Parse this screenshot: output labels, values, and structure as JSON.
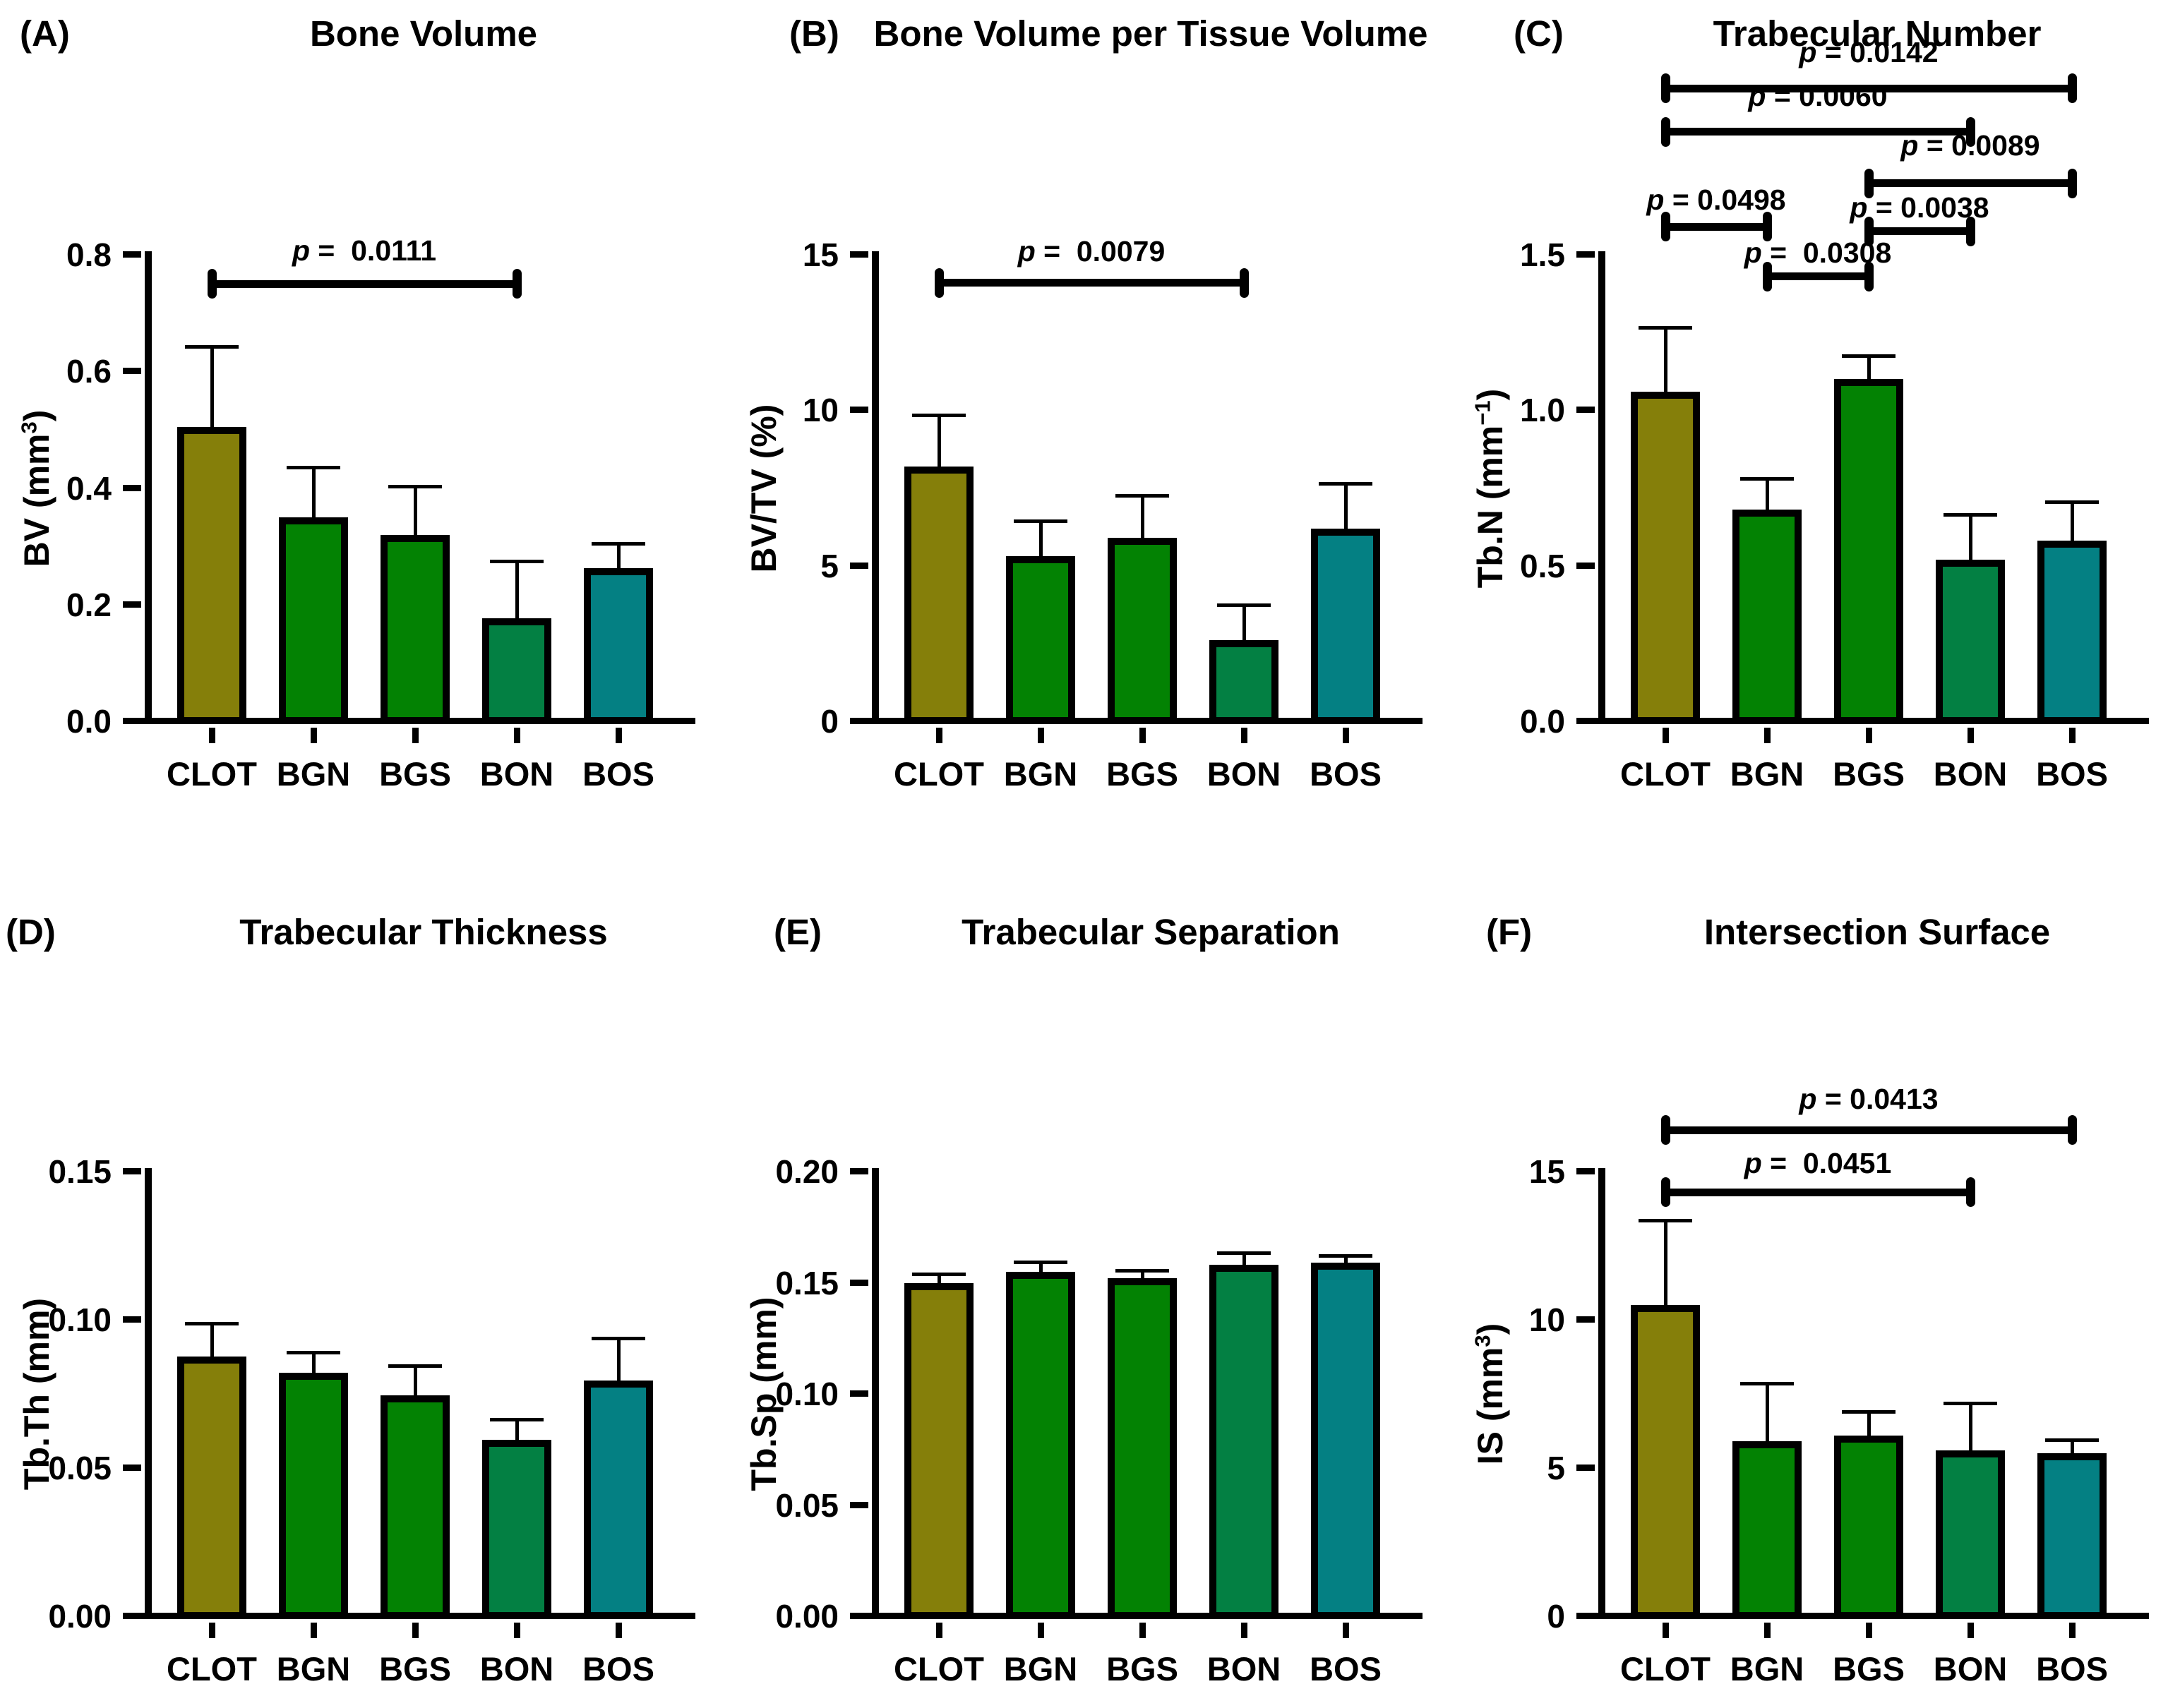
{
  "figure": {
    "categories": [
      "CLOT",
      "BGN",
      "BGS",
      "BON",
      "BOS"
    ],
    "bar_colors": {
      "CLOT": "#857F0A",
      "BGN": "#038203",
      "BGS": "#038203",
      "BON": "#038043",
      "BOS": "#048083"
    }
  },
  "chart_data": [
    {
      "type": "bar",
      "panel_letter": "(A)",
      "title": "Bone Volume",
      "ylabel": {
        "prefix": "BV (mm",
        "sup": "3",
        "suffix": ")"
      },
      "xlabel": "",
      "ylim": [
        0,
        0.8
      ],
      "ytick_labels": [
        "0.0",
        "0.2",
        "0.4",
        "0.6",
        "0.8"
      ],
      "categories": [
        "CLOT",
        "BGN",
        "BGS",
        "BON",
        "BOS"
      ],
      "values": [
        0.505,
        0.35,
        0.32,
        0.177,
        0.263
      ],
      "errors": [
        0.14,
        0.088,
        0.085,
        0.1,
        0.044
      ],
      "brackets": [
        {
          "from": "CLOT",
          "to": "BON",
          "label": "p =  0.0111",
          "line_y": 0.75,
          "label_y": 0.78
        }
      ]
    },
    {
      "type": "bar",
      "panel_letter": "(B)",
      "title": "Bone Volume per Tissue Volume",
      "ylabel": {
        "prefix": "BV/TV (%)",
        "sup": "",
        "suffix": ""
      },
      "xlabel": "",
      "ylim": [
        0,
        15
      ],
      "ytick_labels": [
        "0",
        "5",
        "10",
        "15"
      ],
      "categories": [
        "CLOT",
        "BGN",
        "BGS",
        "BON",
        "BOS"
      ],
      "values": [
        8.2,
        5.3,
        5.9,
        2.6,
        6.2
      ],
      "errors": [
        1.7,
        1.2,
        1.4,
        1.2,
        1.5
      ],
      "brackets": [
        {
          "from": "CLOT",
          "to": "BON",
          "label": "p =  0.0079",
          "line_y": 14.1,
          "label_y": 14.6
        }
      ]
    },
    {
      "type": "bar",
      "panel_letter": "(C)",
      "title": "Trabecular Number",
      "ylabel": {
        "prefix": "Tb.N (mm",
        "sup": "−1",
        "suffix": ")"
      },
      "xlabel": "",
      "ylim": [
        0,
        1.5
      ],
      "ytick_labels": [
        "0.0",
        "0.5",
        "1.0",
        "1.5"
      ],
      "categories": [
        "CLOT",
        "BGN",
        "BGS",
        "BON",
        "BOS"
      ],
      "values": [
        1.06,
        0.68,
        1.1,
        0.52,
        0.58
      ],
      "errors": [
        0.21,
        0.105,
        0.08,
        0.15,
        0.13
      ],
      "brackets": [
        {
          "from": "CLOT",
          "to": "BOS",
          "label": "p = 0.0142",
          "line_y": 2.035,
          "label_y": 2.1
        },
        {
          "from": "CLOT",
          "to": "BON",
          "label": "p = 0.0060",
          "line_y": 1.895,
          "label_y": 1.958
        },
        {
          "from": "BGS",
          "to": "BOS",
          "label": "p = 0.0089",
          "line_y": 1.73,
          "label_y": 1.8
        },
        {
          "from": "CLOT",
          "to": "BGN",
          "label": "p = 0.0498",
          "line_y": 1.59,
          "label_y": 1.625
        },
        {
          "from": "BGS",
          "to": "BON",
          "label": "p = 0.0038",
          "line_y": 1.575,
          "label_y": 1.6
        },
        {
          "from": "BGN",
          "to": "BGS",
          "label": "p =  0.0308",
          "line_y": 1.43,
          "label_y": 1.455
        }
      ]
    },
    {
      "type": "bar",
      "panel_letter": "(D)",
      "title": "Trabecular Thickness",
      "ylabel": {
        "prefix": "Tb.Th (mm)",
        "sup": "",
        "suffix": ""
      },
      "xlabel": "",
      "ylim": [
        0,
        0.15
      ],
      "ytick_labels": [
        "0.00",
        "0.05",
        "0.10",
        "0.15"
      ],
      "categories": [
        "CLOT",
        "BGN",
        "BGS",
        "BON",
        "BOS"
      ],
      "values": [
        0.0876,
        0.0821,
        0.0745,
        0.0595,
        0.0795
      ],
      "errors": [
        0.0116,
        0.0074,
        0.0105,
        0.0074,
        0.0148
      ],
      "brackets": []
    },
    {
      "type": "bar",
      "panel_letter": "(E)",
      "title": "Trabecular Separation",
      "ylabel": {
        "prefix": "Tb.Sp (mm)",
        "sup": "",
        "suffix": ""
      },
      "xlabel": "",
      "ylim": [
        0,
        0.2
      ],
      "ytick_labels": [
        "0.00",
        "0.05",
        "0.10",
        "0.15",
        "0.20"
      ],
      "categories": [
        "CLOT",
        "BGN",
        "BGS",
        "BON",
        "BOS"
      ],
      "values": [
        0.15,
        0.155,
        0.152,
        0.158,
        0.159
      ],
      "errors": [
        0.0045,
        0.005,
        0.0043,
        0.006,
        0.004
      ],
      "brackets": []
    },
    {
      "type": "bar",
      "panel_letter": "(F)",
      "title": "Intersection Surface",
      "ylabel": {
        "prefix": "IS (mm",
        "sup": "3",
        "suffix": ")"
      },
      "xlabel": "",
      "ylim": [
        0,
        15
      ],
      "ytick_labels": [
        "0",
        "5",
        "10",
        "15"
      ],
      "categories": [
        "CLOT",
        "BGN",
        "BGS",
        "BON",
        "BOS"
      ],
      "values": [
        10.5,
        5.9,
        6.1,
        5.6,
        5.5
      ],
      "errors": [
        2.9,
        2.0,
        0.85,
        1.65,
        0.5
      ],
      "brackets": [
        {
          "from": "CLOT",
          "to": "BOS",
          "label": "p = 0.0413",
          "line_y": 16.4,
          "label_y": 16.9
        },
        {
          "from": "CLOT",
          "to": "BON",
          "label": "p =  0.0451",
          "line_y": 14.3,
          "label_y": 14.75
        }
      ]
    }
  ]
}
